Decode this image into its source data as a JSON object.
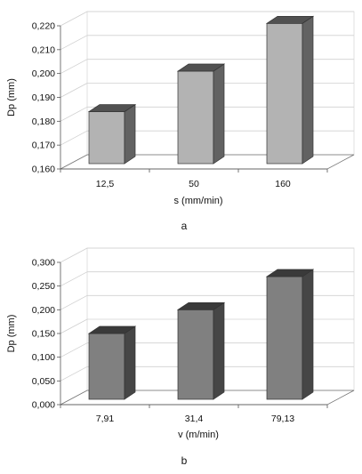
{
  "chart_data": [
    {
      "type": "bar",
      "caption": "a",
      "xlabel": "s (mm/min)",
      "ylabel": "Dp (mm)",
      "categories": [
        "12,5",
        "50",
        "160"
      ],
      "values": [
        0.184,
        0.201,
        0.221
      ],
      "ylim": [
        0.16,
        0.22
      ],
      "yticks": [
        "0,160",
        "0,170",
        "0,180",
        "0,190",
        "0,200",
        "0,210",
        "0,220"
      ],
      "bar_color": "#b3b3b3",
      "grid": true,
      "style": "3d"
    },
    {
      "type": "bar",
      "caption": "b",
      "xlabel": "v (m/min)",
      "ylabel": "Dp (mm)",
      "categories": [
        "7,91",
        "31,4",
        "79,13"
      ],
      "values": [
        0.15,
        0.2,
        0.27
      ],
      "ylim": [
        0,
        0.3
      ],
      "yticks": [
        "0,000",
        "0,050",
        "0,100",
        "0,150",
        "0,200",
        "0,250",
        "0,300"
      ],
      "bar_color": "#808080",
      "grid": true,
      "style": "3d"
    }
  ]
}
